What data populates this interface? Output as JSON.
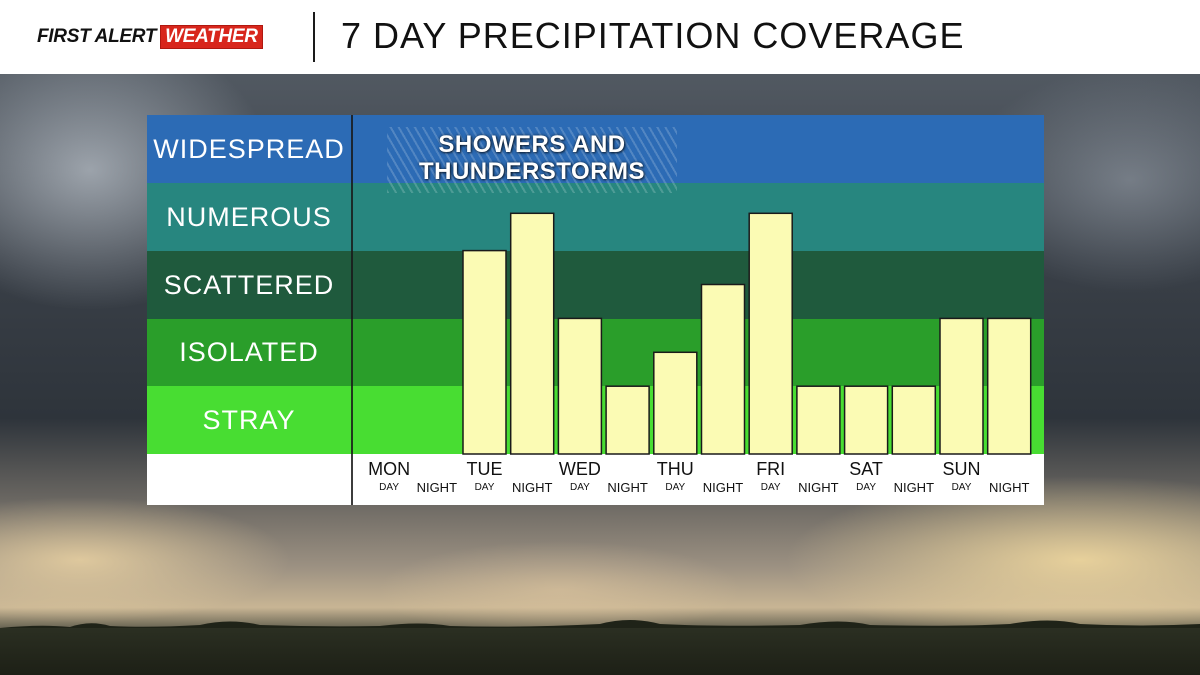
{
  "header": {
    "logo_first_alert": "FIRST ALERT",
    "logo_weather": "WEATHER",
    "title": "7 DAY PRECIPITATION COVERAGE"
  },
  "colors": {
    "widespread": "#2c6bb5",
    "numerous": "#27867f",
    "scattered": "#1f5a3d",
    "isolated": "#2a9e2a",
    "stray": "#48dd32",
    "bar_fill": "#fbfbb4",
    "bar_stroke": "#1a1a1a",
    "logo_red": "#d8261c"
  },
  "chart_data": {
    "type": "bar",
    "title": "7 DAY PRECIPITATION COVERAGE",
    "annotation": "SHOWERS AND THUNDERSTORMS",
    "y_levels": [
      "STRAY",
      "ISOLATED",
      "SCATTERED",
      "NUMEROUS",
      "WIDESPREAD"
    ],
    "ylim": [
      0,
      5
    ],
    "days": [
      "MON",
      "TUE",
      "WED",
      "THU",
      "FRI",
      "SAT",
      "SUN"
    ],
    "periods": [
      "DAY",
      "NIGHT"
    ],
    "categories": [
      "MON DAY",
      "MON NIGHT",
      "TUE DAY",
      "TUE NIGHT",
      "WED DAY",
      "WED NIGHT",
      "THU DAY",
      "THU NIGHT",
      "FRI DAY",
      "FRI NIGHT",
      "SAT DAY",
      "SAT NIGHT",
      "SUN DAY",
      "SUN NIGHT"
    ],
    "values": [
      0,
      0,
      3,
      3.55,
      2,
      1,
      1.5,
      2.5,
      3.55,
      1,
      1,
      1,
      2,
      2
    ]
  }
}
